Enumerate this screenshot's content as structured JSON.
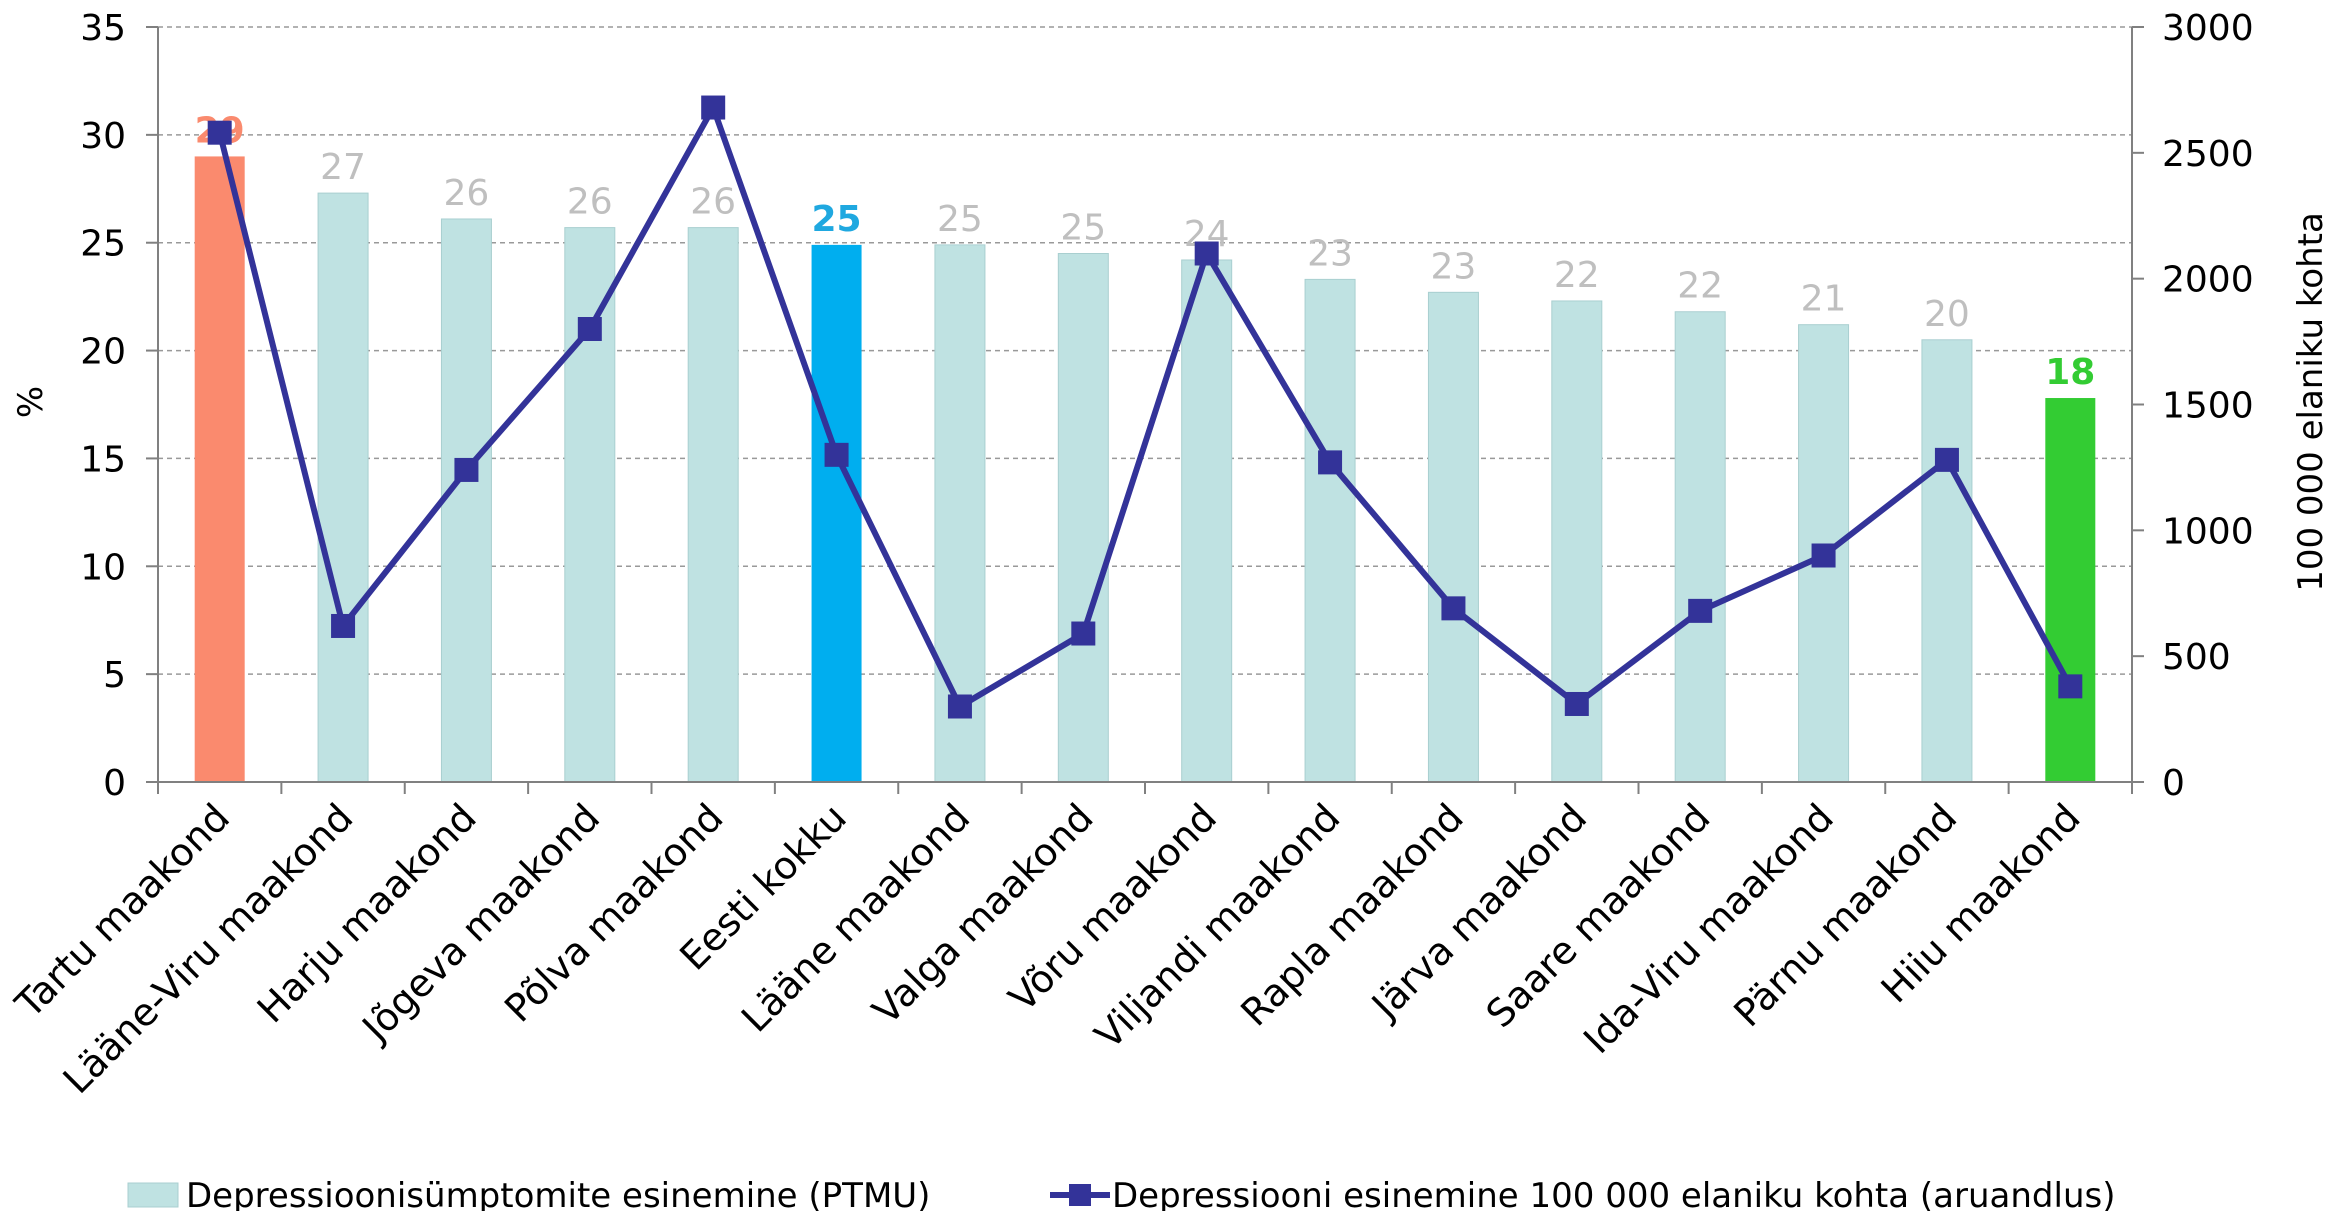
{
  "chart_data": {
    "type": "bar",
    "categories": [
      "Tartu maakond",
      "Lääne-Viru maakond",
      "Harju maakond",
      "Jõgeva maakond",
      "Põlva maakond",
      "Eesti kokku",
      "Lääne maakond",
      "Valga maakond",
      "Võru maakond",
      "Viljandi maakond",
      "Rapla maakond",
      "Järva maakond",
      "Saare maakond",
      "Ida-Viru maakond",
      "Pärnu maakond",
      "Hiiu maakond"
    ],
    "series": [
      {
        "name": "Depressioonisümptomite esinemine (PTMU)",
        "kind": "bar",
        "axis": "left",
        "values": [
          29,
          27.3,
          26.1,
          25.7,
          25.7,
          24.9,
          24.9,
          24.5,
          24.2,
          23.3,
          22.7,
          22.3,
          21.8,
          21.2,
          20.5,
          17.8
        ],
        "labels": [
          "29",
          "27",
          "26",
          "26",
          "26",
          "25",
          "25",
          "25",
          "24",
          "23",
          "23",
          "22",
          "22",
          "21",
          "20",
          "18"
        ],
        "color": "#bfe2e2",
        "highlight_colors": [
          "#fa8a6e",
          null,
          null,
          null,
          null,
          "#00aeef",
          null,
          null,
          null,
          null,
          null,
          null,
          null,
          null,
          null,
          "#33cc33"
        ],
        "label_colors": [
          "#fa8a6e",
          "#bfbfbf",
          "#bfbfbf",
          "#bfbfbf",
          "#bfbfbf",
          "#1fa8e0",
          "#bfbfbf",
          "#bfbfbf",
          "#bfbfbf",
          "#bfbfbf",
          "#bfbfbf",
          "#bfbfbf",
          "#bfbfbf",
          "#bfbfbf",
          "#bfbfbf",
          "#33cc33"
        ]
      },
      {
        "name": "Depressiooni esinemine 100 000 elaniku kohta (aruandlus)",
        "kind": "line",
        "axis": "right",
        "values": [
          2580,
          620,
          1240,
          1800,
          2680,
          1300,
          300,
          590,
          2100,
          1270,
          690,
          310,
          680,
          900,
          1280,
          380
        ],
        "color": "#333399"
      }
    ],
    "y_left": {
      "label": "%",
      "ticks": [
        "0",
        "5",
        "10",
        "15",
        "20",
        "25",
        "30",
        "35"
      ],
      "ylim": [
        0,
        35
      ]
    },
    "y_right": {
      "label": "100 000 elaniku kohta",
      "ticks": [
        "0",
        "500",
        "1000",
        "1500",
        "2000",
        "2500",
        "3000"
      ],
      "ylim": [
        0,
        3000
      ]
    },
    "grid": "horizontal-dashed",
    "legend_position": "bottom"
  }
}
